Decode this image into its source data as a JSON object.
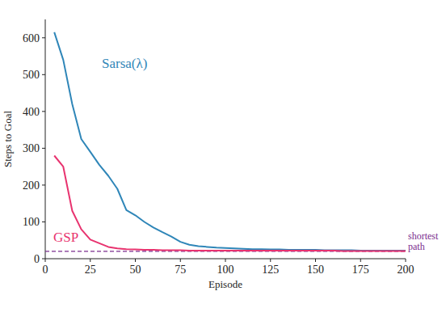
{
  "chart_data": {
    "type": "line",
    "x_label": "Episode",
    "y_label": "Steps to Goal",
    "x": [
      5,
      10,
      15,
      20,
      25,
      30,
      35,
      40,
      45,
      50,
      55,
      60,
      65,
      70,
      75,
      80,
      85,
      90,
      95,
      100,
      105,
      110,
      115,
      120,
      125,
      130,
      135,
      140,
      145,
      150,
      155,
      160,
      165,
      170,
      175,
      180,
      185,
      190,
      195,
      200
    ],
    "series": [
      {
        "name": "Sarsa(λ)",
        "color": "#2f86b8",
        "values": [
          615,
          540,
          420,
          325,
          290,
          255,
          225,
          190,
          132,
          118,
          100,
          85,
          72,
          60,
          46,
          38,
          34,
          32,
          30,
          29,
          28,
          27,
          26,
          26,
          25,
          25,
          24,
          24,
          24,
          24,
          23,
          23,
          23,
          23,
          22,
          22,
          22,
          22,
          22,
          22
        ]
      },
      {
        "name": "GSP",
        "color": "#e8336f",
        "values": [
          280,
          250,
          130,
          80,
          52,
          42,
          32,
          28,
          26,
          25,
          24,
          24,
          23,
          23,
          23,
          22,
          22,
          22,
          22,
          22,
          22,
          22,
          22,
          22,
          22,
          22,
          22,
          22,
          22,
          22,
          22,
          22,
          21,
          21,
          21,
          21,
          21,
          21,
          21,
          21
        ]
      }
    ],
    "reference_line": {
      "value": 20,
      "label_lines": [
        "shortest",
        "path"
      ],
      "color": "#7b2d8e",
      "line_style": "dashed"
    },
    "xlim": [
      0,
      200
    ],
    "xticks": [
      0,
      25,
      50,
      75,
      100,
      125,
      150,
      175,
      200
    ],
    "ylim": [
      0,
      650
    ],
    "yticks": [
      0,
      100,
      200,
      300,
      400,
      500,
      600
    ],
    "grid": false
  }
}
